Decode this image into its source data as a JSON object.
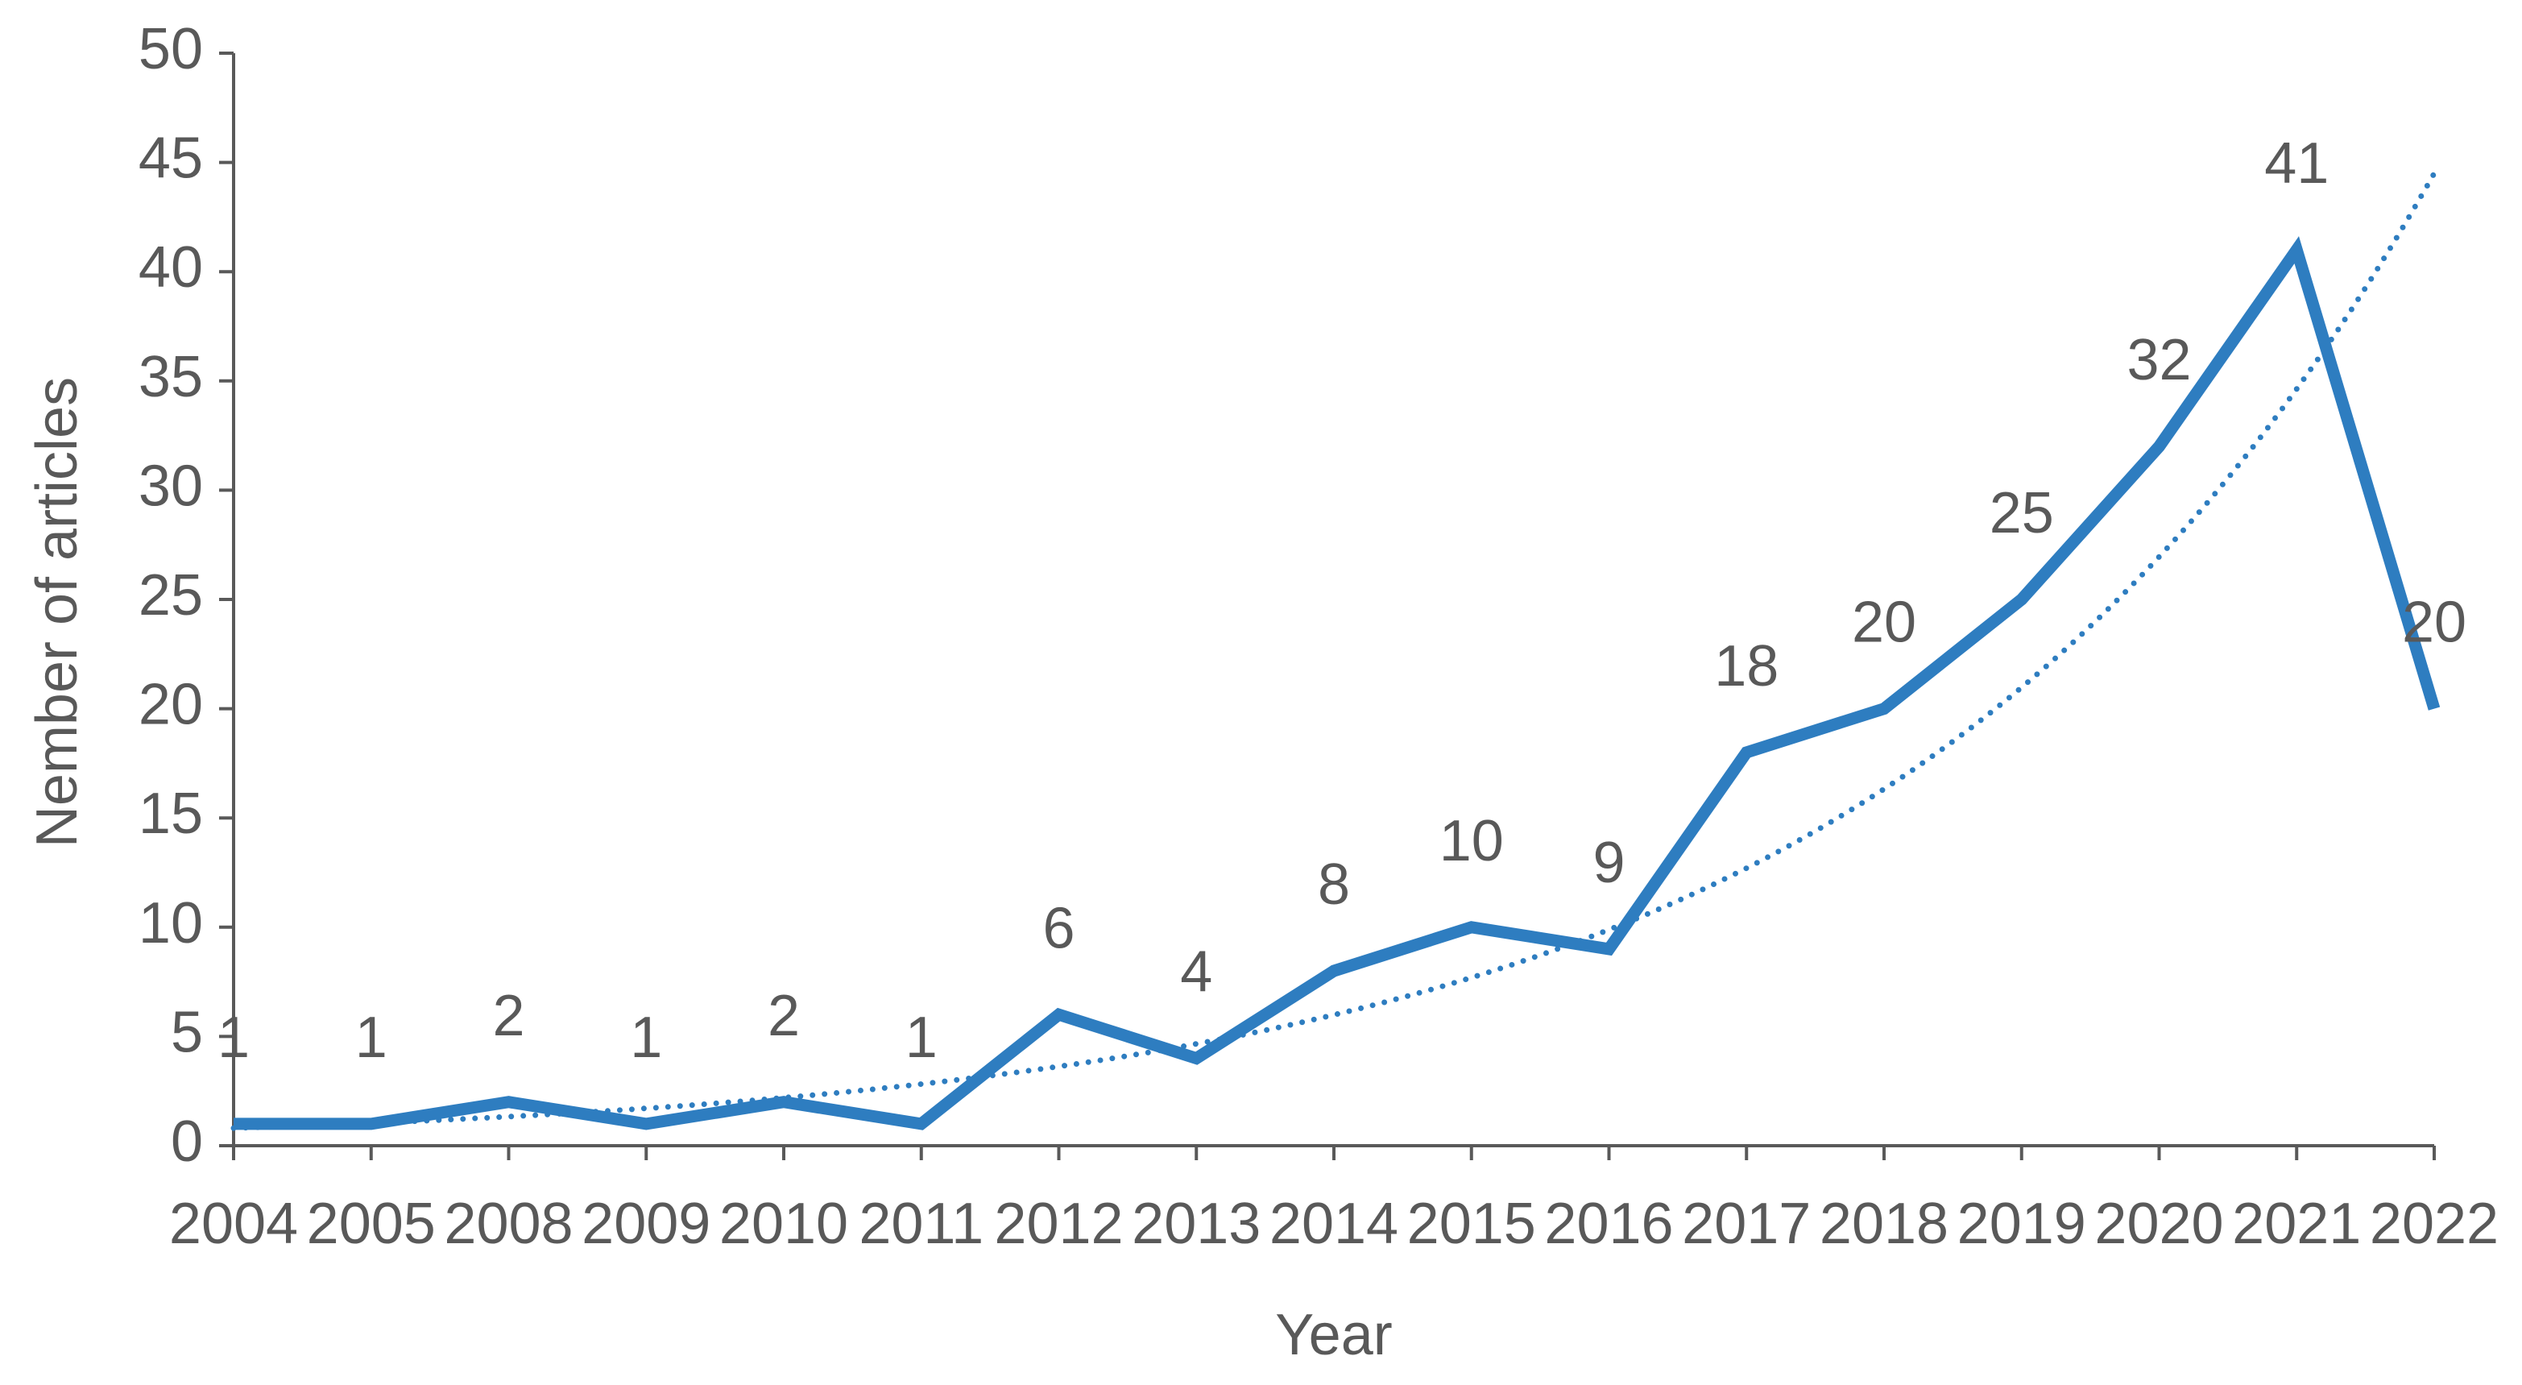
{
  "chart_data": {
    "type": "line",
    "x_label": "Year",
    "y_label": "Nember of articles",
    "categories": [
      "2004",
      "2005",
      "2008",
      "2009",
      "2010",
      "2011",
      "2012",
      "2013",
      "2014",
      "2015",
      "2016",
      "2017",
      "2018",
      "2019",
      "2020",
      "2021",
      "2022"
    ],
    "series": [
      {
        "color": "#2e7dc0",
        "values": [
          1,
          1,
          2,
          1,
          2,
          1,
          6,
          4,
          8,
          10,
          9,
          18,
          20,
          25,
          32,
          41,
          20
        ]
      }
    ],
    "trendline": "exponential",
    "ylim": [
      0,
      50
    ],
    "yticks": [
      0,
      5,
      10,
      15,
      20,
      25,
      30,
      35,
      40,
      45,
      50
    ],
    "data_labels": true
  }
}
